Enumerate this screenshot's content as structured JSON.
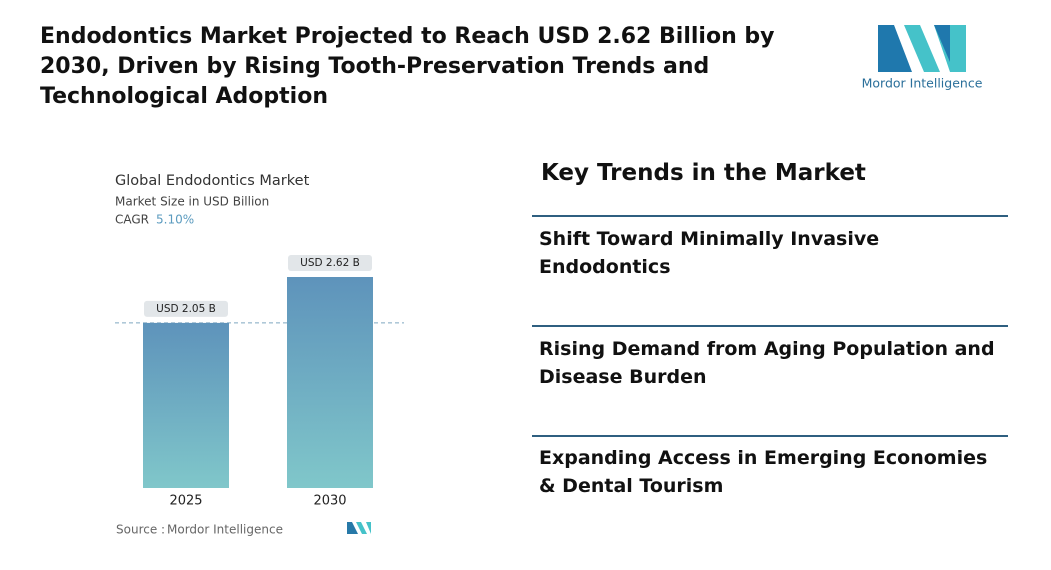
{
  "header": {
    "title": "Endodontics Market Projected to Reach USD 2.62 Billion by 2030, Driven by Rising Tooth-Preservation Trends and Technological Adoption"
  },
  "logo": {
    "text": "Mordor Intelligence"
  },
  "chart_data": {
    "type": "bar",
    "title": "Global Endodontics Market",
    "subtitle": "Market Size in USD Billion",
    "cagr_label": "CAGR",
    "cagr_value": "5.10%",
    "categories": [
      "2025",
      "2030"
    ],
    "values": [
      2.05,
      2.62
    ],
    "value_labels": [
      "USD 2.05 B",
      "USD 2.62 B"
    ],
    "gradient": [
      "#5e93bb",
      "#80c7ca"
    ],
    "source_label": "Source :",
    "source": "Mordor Intelligence"
  },
  "trends": {
    "title": "Key Trends in the Market",
    "items": [
      "Shift Toward Minimally Invasive Endodontics",
      "Rising Demand from Aging Population and Disease Burden",
      "Expanding Access in Emerging Economies & Dental Tourism"
    ]
  }
}
